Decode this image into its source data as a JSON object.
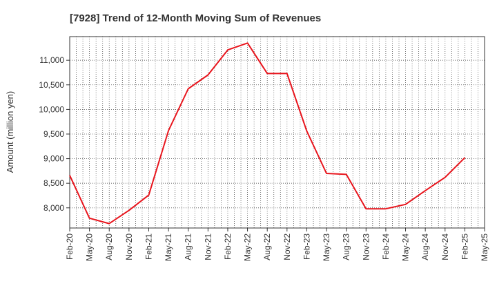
{
  "chart_data": {
    "type": "line",
    "title": "[7928]  Trend of 12-Month Moving Sum of Revenues",
    "xlabel": "",
    "ylabel": "Amount (million yen)",
    "x_tick_labels": [
      "Feb-20",
      "May-20",
      "Aug-20",
      "Nov-20",
      "Feb-21",
      "May-21",
      "Aug-21",
      "Nov-21",
      "Feb-22",
      "May-22",
      "Aug-22",
      "Nov-22",
      "Feb-23",
      "May-23",
      "Aug-23",
      "Nov-23",
      "Feb-24",
      "May-24",
      "Aug-24",
      "Nov-24",
      "Feb-25",
      "May-25"
    ],
    "y_ticks": [
      8000,
      8500,
      9000,
      9500,
      10000,
      10500,
      11000
    ],
    "y_tick_labels": [
      "8,000",
      "8,500",
      "9,000",
      "9,500",
      "10,000",
      "10,500",
      "11,000"
    ],
    "ylim": [
      7590,
      11480
    ],
    "grid": true,
    "line_color": "#e8141c",
    "series": [
      {
        "values": [
          8660,
          7790,
          7680,
          7950,
          8260,
          9570,
          10420,
          10700,
          11210,
          11350,
          10730,
          10730,
          9560,
          8700,
          8680,
          7980,
          7980,
          8070,
          8350,
          8620,
          9020
        ]
      }
    ]
  }
}
